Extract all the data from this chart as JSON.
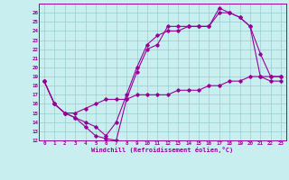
{
  "xlabel": "Windchill (Refroidissement éolien,°C)",
  "xlim": [
    -0.5,
    23.5
  ],
  "ylim": [
    12,
    27
  ],
  "xticks": [
    0,
    1,
    2,
    3,
    4,
    5,
    6,
    7,
    8,
    9,
    10,
    11,
    12,
    13,
    14,
    15,
    16,
    17,
    18,
    19,
    20,
    21,
    22,
    23
  ],
  "yticks": [
    12,
    13,
    14,
    15,
    16,
    17,
    18,
    19,
    20,
    21,
    22,
    23,
    24,
    25,
    26
  ],
  "line_color": "#990099",
  "bg_color": "#c8eef0",
  "grid_color": "#99cccc",
  "line1": {
    "x": [
      0,
      1,
      2,
      3,
      4,
      5,
      6,
      7,
      8,
      9,
      10,
      11,
      12,
      13,
      14,
      15,
      16,
      17,
      18,
      19,
      20,
      21,
      22,
      23
    ],
    "y": [
      18.5,
      16.0,
      15.0,
      14.5,
      13.5,
      12.5,
      12.2,
      12.0,
      16.5,
      19.5,
      22.0,
      22.5,
      24.5,
      24.5,
      24.5,
      24.5,
      24.5,
      26.5,
      26.0,
      25.5,
      24.5,
      21.5,
      19.0,
      19.0
    ]
  },
  "line2": {
    "x": [
      0,
      1,
      2,
      3,
      4,
      5,
      6,
      7,
      8,
      9,
      10,
      11,
      12,
      13,
      14,
      15,
      16,
      17,
      18,
      19,
      20,
      21,
      22,
      23
    ],
    "y": [
      18.5,
      16.0,
      15.0,
      14.5,
      14.0,
      13.5,
      12.5,
      14.0,
      17.0,
      20.0,
      22.5,
      23.5,
      24.0,
      24.0,
      24.5,
      24.5,
      24.5,
      26.0,
      26.0,
      25.5,
      24.5,
      19.0,
      18.5,
      18.5
    ]
  },
  "line3": {
    "x": [
      0,
      1,
      2,
      3,
      4,
      5,
      6,
      7,
      8,
      9,
      10,
      11,
      12,
      13,
      14,
      15,
      16,
      17,
      18,
      19,
      20,
      21,
      22,
      23
    ],
    "y": [
      18.5,
      16.0,
      15.0,
      15.0,
      15.5,
      16.0,
      16.5,
      16.5,
      16.5,
      17.0,
      17.0,
      17.0,
      17.0,
      17.5,
      17.5,
      17.5,
      18.0,
      18.0,
      18.5,
      18.5,
      19.0,
      19.0,
      19.0,
      19.0
    ]
  }
}
